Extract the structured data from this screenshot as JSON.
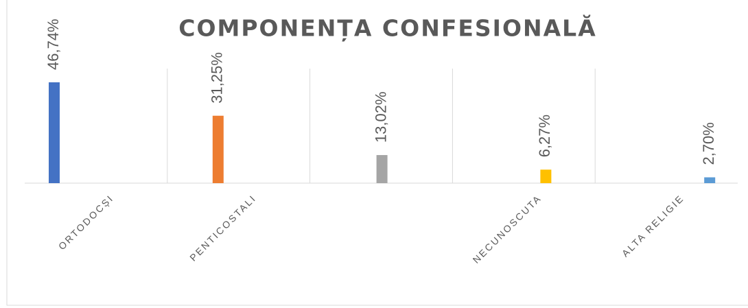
{
  "chart_data": {
    "type": "bar",
    "title": "COMPONENȚA CONFESIONALĂ",
    "categories": [
      "ORTODOCȘI",
      "PENTICOSTALI",
      null,
      "NECUNOSCUTA",
      "ALTA RELIGIE"
    ],
    "values": [
      46.74,
      31.25,
      13.02,
      6.27,
      2.7
    ],
    "value_labels": [
      "46,74%",
      "31,25%",
      "13,02%",
      "6,27%",
      "2,70%"
    ],
    "colors": [
      "#4472c4",
      "#ed7d31",
      "#a5a5a5",
      "#ffc000",
      "#5b9bd5"
    ]
  }
}
